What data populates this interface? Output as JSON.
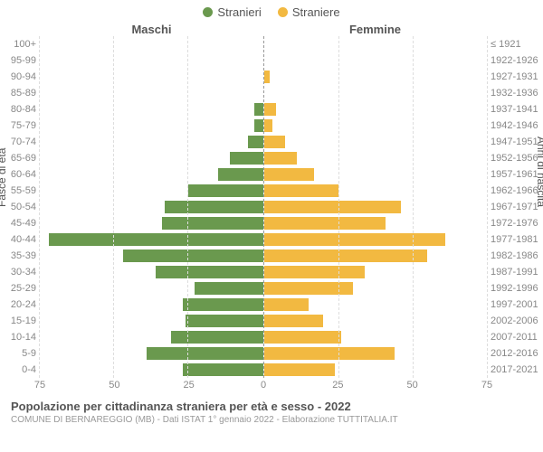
{
  "chart": {
    "type": "population-pyramid",
    "legend": [
      {
        "label": "Stranieri",
        "color": "#6a994e"
      },
      {
        "label": "Straniere",
        "color": "#f2b941"
      }
    ],
    "side_headers": {
      "left": "Maschi",
      "right": "Femmine"
    },
    "y_axis_left_label": "Fasce di età",
    "y_axis_right_label": "Anni di nascita",
    "colors": {
      "male": "#6a994e",
      "female": "#f2b941",
      "grid": "#dddddd",
      "axis_dash": "#999999",
      "text_muted": "#888888",
      "text_header": "#555555",
      "background": "#ffffff"
    },
    "x_axis": {
      "min": 0,
      "max": 75,
      "ticks": [
        75,
        50,
        25,
        0,
        25,
        50,
        75
      ]
    },
    "fontsize": {
      "legend": 13,
      "header": 13,
      "ticks": 11,
      "footer_title": 13,
      "footer_sub": 10
    },
    "rows": [
      {
        "age": "100+",
        "birth": "≤ 1921",
        "male": 0,
        "female": 0
      },
      {
        "age": "95-99",
        "birth": "1922-1926",
        "male": 0,
        "female": 0
      },
      {
        "age": "90-94",
        "birth": "1927-1931",
        "male": 0,
        "female": 2
      },
      {
        "age": "85-89",
        "birth": "1932-1936",
        "male": 0,
        "female": 0
      },
      {
        "age": "80-84",
        "birth": "1937-1941",
        "male": 3,
        "female": 4
      },
      {
        "age": "75-79",
        "birth": "1942-1946",
        "male": 3,
        "female": 3
      },
      {
        "age": "70-74",
        "birth": "1947-1951",
        "male": 5,
        "female": 7
      },
      {
        "age": "65-69",
        "birth": "1952-1956",
        "male": 11,
        "female": 11
      },
      {
        "age": "60-64",
        "birth": "1957-1961",
        "male": 15,
        "female": 17
      },
      {
        "age": "55-59",
        "birth": "1962-1966",
        "male": 25,
        "female": 25
      },
      {
        "age": "50-54",
        "birth": "1967-1971",
        "male": 33,
        "female": 46
      },
      {
        "age": "45-49",
        "birth": "1972-1976",
        "male": 34,
        "female": 41
      },
      {
        "age": "40-44",
        "birth": "1977-1981",
        "male": 72,
        "female": 61
      },
      {
        "age": "35-39",
        "birth": "1982-1986",
        "male": 47,
        "female": 55
      },
      {
        "age": "30-34",
        "birth": "1987-1991",
        "male": 36,
        "female": 34
      },
      {
        "age": "25-29",
        "birth": "1992-1996",
        "male": 23,
        "female": 30
      },
      {
        "age": "20-24",
        "birth": "1997-2001",
        "male": 27,
        "female": 15
      },
      {
        "age": "15-19",
        "birth": "2002-2006",
        "male": 26,
        "female": 20
      },
      {
        "age": "10-14",
        "birth": "2007-2011",
        "male": 31,
        "female": 26
      },
      {
        "age": "5-9",
        "birth": "2012-2016",
        "male": 39,
        "female": 44
      },
      {
        "age": "0-4",
        "birth": "2017-2021",
        "male": 27,
        "female": 24
      }
    ],
    "footer": {
      "title": "Popolazione per cittadinanza straniera per età e sesso - 2022",
      "subtitle": "COMUNE DI BERNAREGGIO (MB) - Dati ISTAT 1° gennaio 2022 - Elaborazione TUTTITALIA.IT"
    }
  }
}
